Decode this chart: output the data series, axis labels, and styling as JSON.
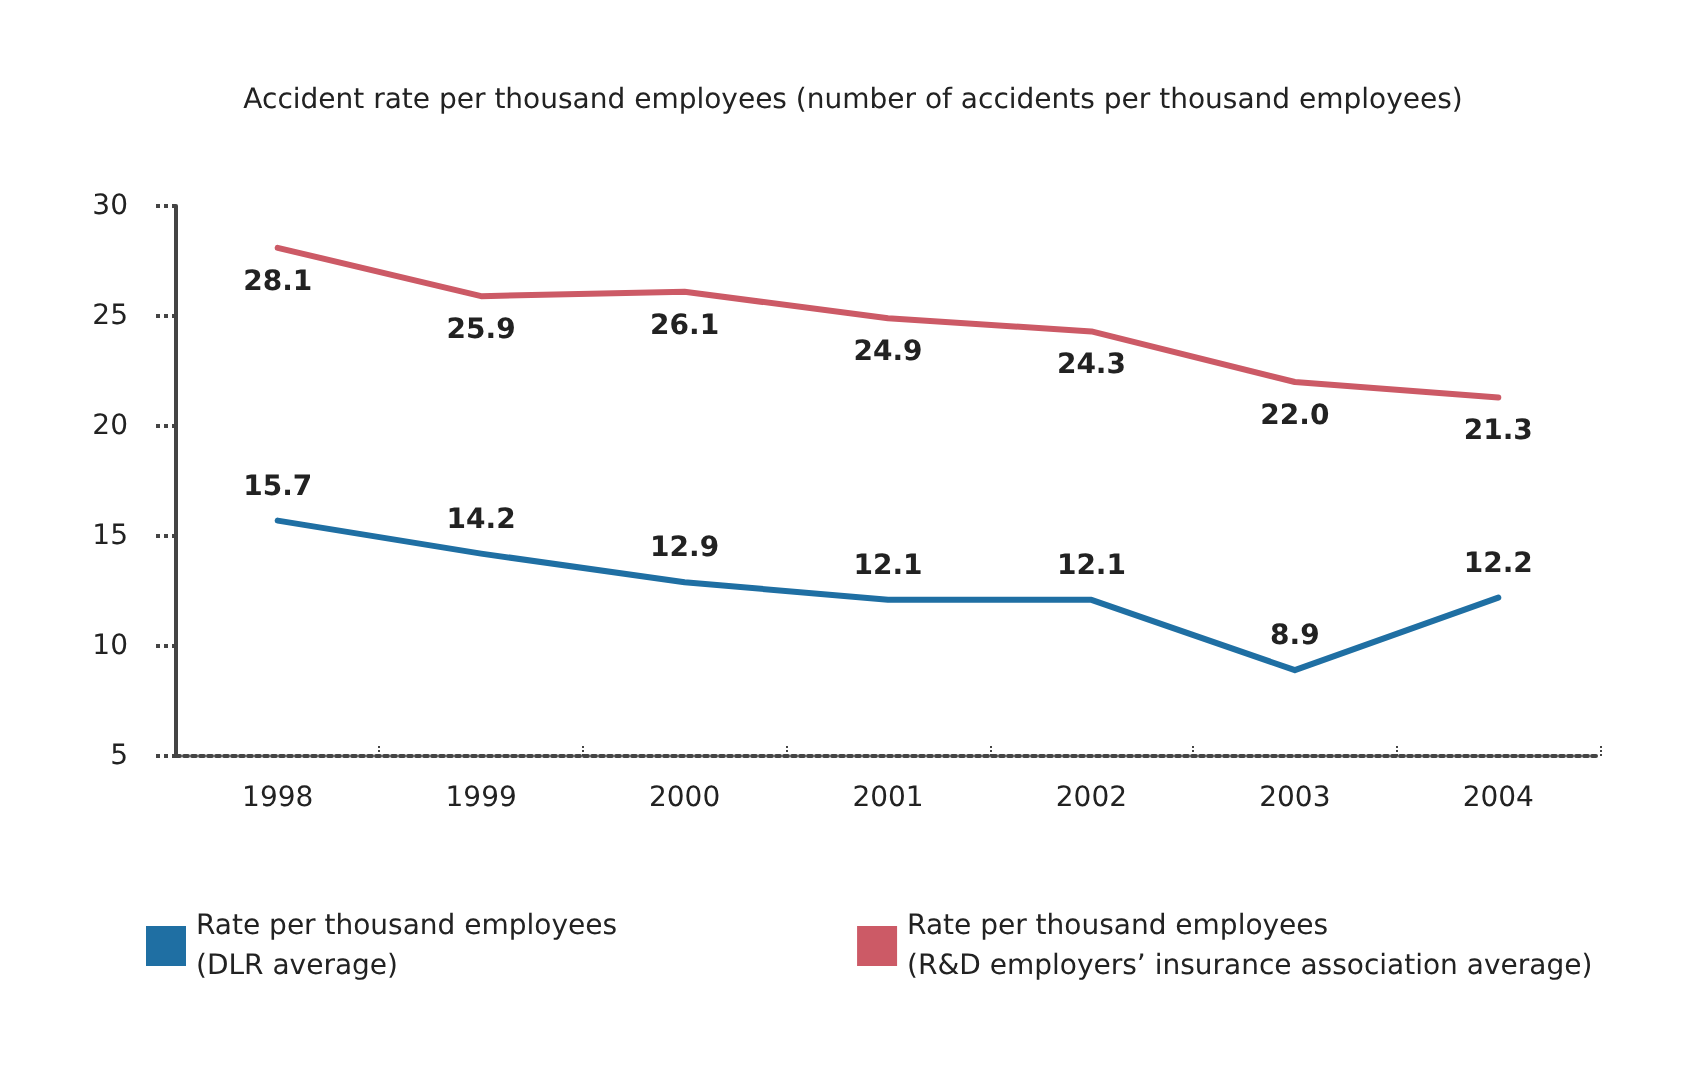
{
  "chart_data": {
    "type": "line",
    "title": "Accident rate per thousand employees (number of accidents per thousand employees)",
    "categories": [
      "1998",
      "1999",
      "2000",
      "2001",
      "2002",
      "2003",
      "2004"
    ],
    "series": [
      {
        "name": "Rate per thousand employees\n(DLR average)",
        "color": "#1f6fa3",
        "values": [
          15.7,
          14.2,
          12.9,
          12.1,
          12.1,
          8.9,
          12.2
        ],
        "value_labels": [
          "15.7",
          "14.2",
          "12.9",
          "12.1",
          "12.1",
          "8.9",
          "12.2"
        ]
      },
      {
        "name": "Rate per thousand employees\n(R&D employers’ insurance association average)",
        "color": "#cc5a66",
        "values": [
          28.1,
          25.9,
          26.1,
          24.9,
          24.3,
          22,
          21.3
        ],
        "value_labels": [
          "28.1",
          "25.9",
          "26.1",
          "24.9",
          "24.3",
          "22.0",
          "21.3"
        ]
      }
    ],
    "ylim": [
      5,
      30
    ],
    "yticks": [
      5,
      10,
      15,
      20,
      25,
      30
    ],
    "grid": false,
    "legend": "bottom",
    "marker": "none",
    "line_style": "solid"
  }
}
